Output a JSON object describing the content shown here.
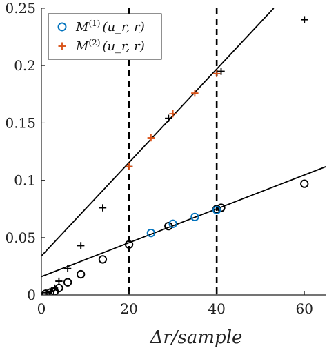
{
  "chart_data": {
    "type": "scatter",
    "xlabel": "Δr/sample",
    "ylabel": "",
    "xlim": [
      0,
      65
    ],
    "ylim": [
      0,
      0.25
    ],
    "xticks": [
      0,
      20,
      40,
      60
    ],
    "xtick_labels": [
      "0",
      "20",
      "40",
      "60"
    ],
    "yticks": [
      0,
      0.05,
      0.1,
      0.15,
      0.2,
      0.25
    ],
    "ytick_labels": [
      "0",
      "0.05",
      "0.1",
      "0.15",
      "0.2",
      "0.25"
    ],
    "grid": false,
    "legend_position": "top-left",
    "legend": [
      {
        "label": "M^{(1)}(u_r, r)",
        "marker": "circle",
        "color": "#0072BD"
      },
      {
        "label": "M^{(2)}(u_r, r)",
        "marker": "plus",
        "color": "#D95319"
      }
    ],
    "vlines": [
      20,
      40
    ],
    "series": [
      {
        "name": "M^{(1)}(u_r, r)",
        "marker": "circle",
        "color": "#0072BD",
        "points": [
          [
            25,
            0.054
          ],
          [
            30,
            0.062
          ],
          [
            35,
            0.068
          ],
          [
            40,
            0.074
          ]
        ]
      },
      {
        "name": "M^{(2)}(u_r, r)",
        "marker": "plus",
        "color": "#D95319",
        "points": [
          [
            20,
            0.112
          ],
          [
            25,
            0.137
          ],
          [
            30,
            0.158
          ],
          [
            35,
            0.176
          ],
          [
            40,
            0.193
          ]
        ]
      },
      {
        "marker": "circle",
        "color": "#000000",
        "points": [
          [
            1,
            0.001
          ],
          [
            2,
            0.002
          ],
          [
            3,
            0.003
          ],
          [
            4,
            0.006
          ],
          [
            6,
            0.011
          ],
          [
            9,
            0.018
          ],
          [
            14,
            0.031
          ],
          [
            20,
            0.044
          ],
          [
            29,
            0.06
          ],
          [
            40,
            0.075
          ],
          [
            41,
            0.076
          ],
          [
            60,
            0.097
          ]
        ]
      },
      {
        "marker": "plus",
        "color": "#000000",
        "points": [
          [
            1,
            0.002
          ],
          [
            2,
            0.003
          ],
          [
            3,
            0.006
          ],
          [
            4,
            0.012
          ],
          [
            6,
            0.023
          ],
          [
            9,
            0.043
          ],
          [
            14,
            0.076
          ],
          [
            20,
            0.112
          ],
          [
            29,
            0.154
          ],
          [
            41,
            0.195
          ],
          [
            60,
            0.24
          ]
        ]
      }
    ],
    "fit_lines": [
      {
        "color": "#000000",
        "x": [
          0,
          65
        ],
        "y": [
          0.016,
          0.112
        ]
      },
      {
        "color": "#000000",
        "x": [
          0,
          53
        ],
        "y": [
          0.034,
          0.25
        ]
      }
    ]
  }
}
